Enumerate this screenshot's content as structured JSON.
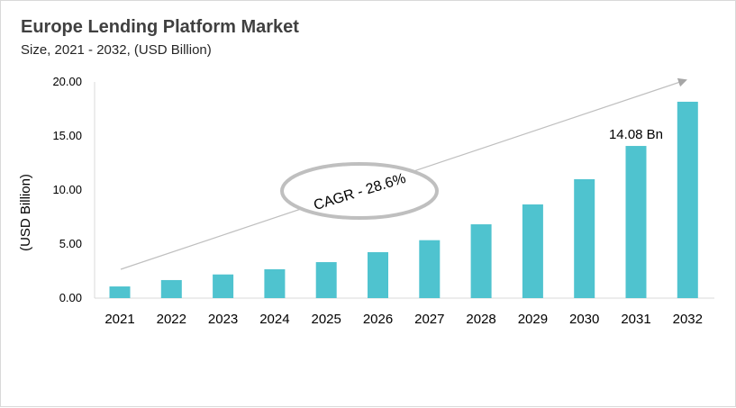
{
  "chart_data": {
    "type": "bar",
    "title": "Europe Lending Platform Market",
    "subtitle": "Size, 2021 - 2032, (USD Billion)",
    "xlabel": "",
    "ylabel": "(USD Billion)",
    "categories": [
      "2021",
      "2022",
      "2023",
      "2024",
      "2025",
      "2026",
      "2027",
      "2028",
      "2029",
      "2030",
      "2031",
      "2032"
    ],
    "values": [
      1.08,
      1.67,
      2.19,
      2.67,
      3.33,
      4.25,
      5.36,
      6.83,
      8.67,
      11.0,
      14.08,
      18.17
    ],
    "ylim": [
      0,
      20
    ],
    "yticks": [
      "0.00",
      "5.00",
      "10.00",
      "15.00",
      "20.00"
    ],
    "grid": false,
    "bar_color": "#4fc3cf",
    "annotations": {
      "data_label": {
        "category": "2031",
        "text": "14.08 Bn"
      },
      "cagr": "CAGR - 28.6%"
    }
  }
}
